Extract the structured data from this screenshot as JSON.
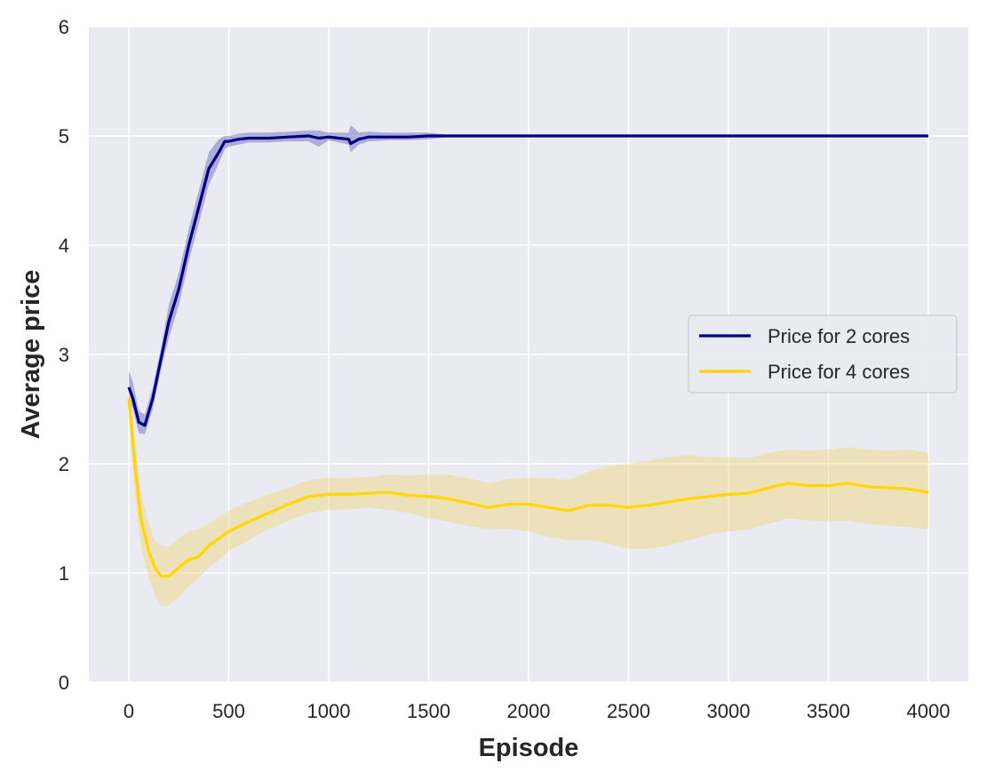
{
  "chart_data": {
    "type": "line",
    "title": "",
    "xlabel": "Episode",
    "ylabel": "Average price",
    "xlim": [
      -200,
      4200
    ],
    "ylim": [
      0,
      6
    ],
    "xticks": [
      0,
      500,
      1000,
      1500,
      2000,
      2500,
      3000,
      3500,
      4000
    ],
    "yticks": [
      0,
      1,
      2,
      3,
      4,
      5,
      6
    ],
    "grid": true,
    "legend_position": "center-right",
    "series": [
      {
        "name": "Price for 2 cores",
        "color": "#000080",
        "band_color": "#3a3aa8",
        "x": [
          0,
          20,
          50,
          80,
          120,
          160,
          200,
          250,
          300,
          350,
          400,
          450,
          480,
          500,
          550,
          600,
          700,
          800,
          900,
          950,
          1000,
          1050,
          1100,
          1110,
          1150,
          1200,
          1300,
          1400,
          1500,
          1600,
          2000,
          2500,
          3000,
          3500,
          4000
        ],
        "y": [
          2.7,
          2.6,
          2.38,
          2.35,
          2.6,
          2.95,
          3.3,
          3.6,
          4.0,
          4.35,
          4.7,
          4.85,
          4.95,
          4.95,
          4.97,
          4.98,
          4.98,
          4.99,
          5.0,
          4.98,
          4.99,
          4.98,
          4.97,
          4.93,
          4.97,
          4.99,
          4.99,
          4.99,
          5.0,
          5.0,
          5.0,
          5.0,
          5.0,
          5.0,
          5.0
        ],
        "lower": [
          2.6,
          2.5,
          2.28,
          2.27,
          2.5,
          2.85,
          3.15,
          3.45,
          3.85,
          4.2,
          4.55,
          4.75,
          4.88,
          4.9,
          4.92,
          4.94,
          4.94,
          4.95,
          4.95,
          4.9,
          4.96,
          4.94,
          4.92,
          4.85,
          4.92,
          4.95,
          4.96,
          4.96,
          4.97,
          4.99,
          5.0,
          5.0,
          5.0,
          5.0,
          5.0
        ],
        "upper": [
          2.85,
          2.75,
          2.48,
          2.45,
          2.7,
          3.05,
          3.45,
          3.75,
          4.15,
          4.5,
          4.85,
          4.97,
          5.0,
          5.0,
          5.02,
          5.03,
          5.03,
          5.04,
          5.05,
          5.05,
          5.03,
          5.03,
          5.03,
          5.1,
          5.03,
          5.04,
          5.03,
          5.03,
          5.03,
          5.01,
          5.0,
          5.0,
          5.0,
          5.0,
          5.0
        ]
      },
      {
        "name": "Price for 4 cores",
        "color": "#ffd700",
        "band_color": "#f0d878",
        "x": [
          0,
          30,
          60,
          100,
          130,
          160,
          200,
          250,
          300,
          350,
          400,
          500,
          600,
          700,
          800,
          900,
          1000,
          1100,
          1200,
          1300,
          1400,
          1500,
          1600,
          1700,
          1800,
          1900,
          2000,
          2100,
          2200,
          2300,
          2400,
          2500,
          2600,
          2700,
          2800,
          2900,
          3000,
          3100,
          3200,
          3300,
          3400,
          3500,
          3600,
          3700,
          3800,
          3900,
          4000
        ],
        "y": [
          2.6,
          2.0,
          1.5,
          1.2,
          1.05,
          0.97,
          0.97,
          1.05,
          1.12,
          1.15,
          1.25,
          1.38,
          1.47,
          1.55,
          1.63,
          1.7,
          1.72,
          1.72,
          1.73,
          1.74,
          1.71,
          1.7,
          1.68,
          1.64,
          1.6,
          1.63,
          1.63,
          1.6,
          1.57,
          1.62,
          1.62,
          1.6,
          1.62,
          1.65,
          1.68,
          1.7,
          1.72,
          1.73,
          1.78,
          1.82,
          1.8,
          1.8,
          1.82,
          1.79,
          1.78,
          1.77,
          1.74
        ],
        "lower": [
          2.45,
          1.75,
          1.25,
          0.95,
          0.8,
          0.7,
          0.7,
          0.78,
          0.88,
          0.95,
          1.05,
          1.2,
          1.3,
          1.4,
          1.48,
          1.55,
          1.58,
          1.58,
          1.6,
          1.58,
          1.55,
          1.5,
          1.47,
          1.43,
          1.4,
          1.4,
          1.38,
          1.33,
          1.3,
          1.3,
          1.27,
          1.22,
          1.22,
          1.25,
          1.3,
          1.35,
          1.38,
          1.4,
          1.45,
          1.5,
          1.48,
          1.47,
          1.48,
          1.45,
          1.43,
          1.42,
          1.4
        ],
        "upper": [
          2.75,
          2.25,
          1.75,
          1.45,
          1.3,
          1.25,
          1.24,
          1.32,
          1.38,
          1.4,
          1.45,
          1.57,
          1.65,
          1.72,
          1.78,
          1.85,
          1.87,
          1.87,
          1.88,
          1.9,
          1.89,
          1.9,
          1.9,
          1.87,
          1.82,
          1.86,
          1.87,
          1.87,
          1.85,
          1.93,
          1.98,
          2.0,
          2.03,
          2.06,
          2.08,
          2.06,
          2.06,
          2.05,
          2.1,
          2.13,
          2.12,
          2.13,
          2.15,
          2.13,
          2.12,
          2.13,
          2.1
        ]
      }
    ]
  }
}
